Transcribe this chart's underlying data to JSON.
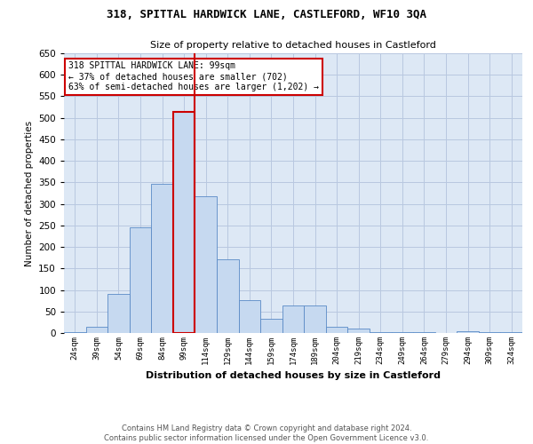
{
  "title1": "318, SPITTAL HARDWICK LANE, CASTLEFORD, WF10 3QA",
  "title2": "Size of property relative to detached houses in Castleford",
  "xlabel": "Distribution of detached houses by size in Castleford",
  "ylabel": "Number of detached properties",
  "categories": [
    "24sqm",
    "39sqm",
    "54sqm",
    "69sqm",
    "84sqm",
    "99sqm",
    "114sqm",
    "129sqm",
    "144sqm",
    "159sqm",
    "174sqm",
    "189sqm",
    "204sqm",
    "219sqm",
    "234sqm",
    "249sqm",
    "264sqm",
    "279sqm",
    "294sqm",
    "309sqm",
    "324sqm"
  ],
  "values": [
    3,
    15,
    91,
    245,
    346,
    513,
    318,
    172,
    76,
    34,
    63,
    63,
    15,
    10,
    3,
    3,
    3,
    0,
    5,
    3,
    3
  ],
  "bar_color": "#c6d9f0",
  "bar_edge_color": "#5a8ac6",
  "highlight_bar_index": 5,
  "vline_color": "#cc0000",
  "annotation_text": "318 SPITTAL HARDWICK LANE: 99sqm\n← 37% of detached houses are smaller (702)\n63% of semi-detached houses are larger (1,202) →",
  "annotation_box_color": "#ffffff",
  "annotation_box_edge": "#cc0000",
  "ylim": [
    0,
    650
  ],
  "yticks": [
    0,
    50,
    100,
    150,
    200,
    250,
    300,
    350,
    400,
    450,
    500,
    550,
    600,
    650
  ],
  "grid_color": "#b8c8e0",
  "background_color": "#dde8f5",
  "footer1": "Contains HM Land Registry data © Crown copyright and database right 2024.",
  "footer2": "Contains public sector information licensed under the Open Government Licence v3.0."
}
